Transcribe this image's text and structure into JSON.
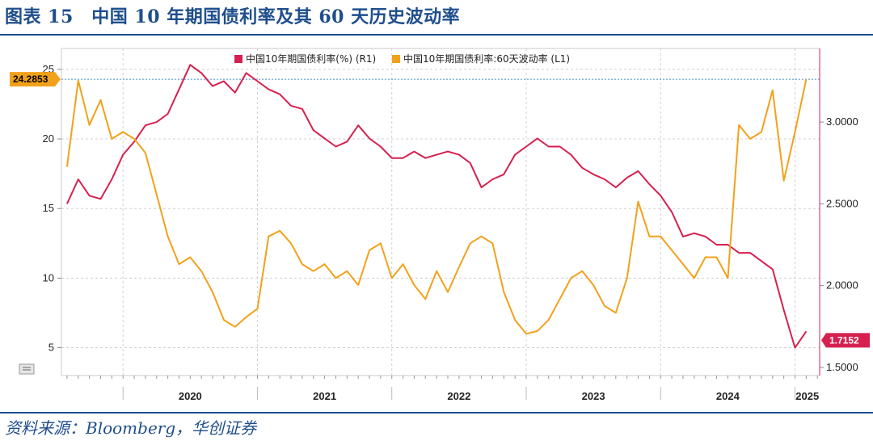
{
  "title": "图表 15　中国 10 年期国债利率及其 60 天历史波动率",
  "source": "资料来源：Bloomberg，华创证券",
  "chart_data": {
    "type": "line",
    "legend": [
      {
        "name": "中国10年期国债利率(%) (R1)",
        "color": "#d6204f"
      },
      {
        "name": "中国10年期国债利率:60天波动率 (L1)",
        "color": "#f2a11a"
      }
    ],
    "left_axis": {
      "ylim": [
        3.0,
        26.5
      ],
      "ticks": [
        "5",
        "10",
        "15",
        "20",
        "25"
      ]
    },
    "right_axis": {
      "ylim": [
        1.45,
        3.45
      ],
      "ticks": [
        "1.5000",
        "2.0000",
        "2.5000",
        "3.0000"
      ]
    },
    "x_labels": [
      "2020",
      "2021",
      "2022",
      "2023",
      "2024",
      "2025"
    ],
    "reference_line_left": 24.2853,
    "last_value_left": "24.2853",
    "last_value_right": "1.7152",
    "colors": {
      "yield": "#d6204f",
      "vol": "#f2a11a",
      "refline": "#5b9bd5"
    },
    "series": [
      {
        "name": "中国10年期国债利率(%) (R1)",
        "axis": "right",
        "x": [
          "2019-08",
          "2019-09",
          "2019-10",
          "2019-11",
          "2019-12",
          "2020-01",
          "2020-02",
          "2020-03",
          "2020-04",
          "2020-05",
          "2020-06",
          "2020-07",
          "2020-08",
          "2020-09",
          "2020-10",
          "2020-11",
          "2020-12",
          "2021-01",
          "2021-02",
          "2021-03",
          "2021-04",
          "2021-05",
          "2021-06",
          "2021-07",
          "2021-08",
          "2021-09",
          "2021-10",
          "2021-11",
          "2021-12",
          "2022-01",
          "2022-02",
          "2022-03",
          "2022-04",
          "2022-05",
          "2022-06",
          "2022-07",
          "2022-08",
          "2022-09",
          "2022-10",
          "2022-11",
          "2022-12",
          "2023-01",
          "2023-02",
          "2023-03",
          "2023-04",
          "2023-05",
          "2023-06",
          "2023-07",
          "2023-08",
          "2023-09",
          "2023-10",
          "2023-11",
          "2023-12",
          "2024-01",
          "2024-02",
          "2024-03",
          "2024-04",
          "2024-05",
          "2024-06",
          "2024-07",
          "2024-08",
          "2024-09",
          "2024-10",
          "2024-11",
          "2024-12",
          "2025-01",
          "2025-02"
        ],
        "values": [
          2.5,
          2.65,
          2.55,
          2.53,
          2.65,
          2.8,
          2.88,
          2.98,
          3.0,
          3.05,
          3.2,
          3.35,
          3.3,
          3.22,
          3.25,
          3.18,
          3.3,
          3.25,
          3.2,
          3.17,
          3.1,
          3.08,
          2.95,
          2.9,
          2.85,
          2.88,
          2.98,
          2.9,
          2.85,
          2.78,
          2.78,
          2.82,
          2.78,
          2.8,
          2.82,
          2.8,
          2.75,
          2.6,
          2.65,
          2.68,
          2.8,
          2.85,
          2.9,
          2.85,
          2.85,
          2.8,
          2.72,
          2.68,
          2.65,
          2.6,
          2.66,
          2.7,
          2.62,
          2.55,
          2.45,
          2.3,
          2.32,
          2.3,
          2.25,
          2.25,
          2.2,
          2.2,
          2.15,
          2.1,
          1.85,
          1.62,
          1.72
        ]
      },
      {
        "name": "中国10年期国债利率:60天波动率 (L1)",
        "axis": "left",
        "x": [
          "2019-08",
          "2019-09",
          "2019-10",
          "2019-11",
          "2019-12",
          "2020-01",
          "2020-02",
          "2020-03",
          "2020-04",
          "2020-05",
          "2020-06",
          "2020-07",
          "2020-08",
          "2020-09",
          "2020-10",
          "2020-11",
          "2020-12",
          "2021-01",
          "2021-02",
          "2021-03",
          "2021-04",
          "2021-05",
          "2021-06",
          "2021-07",
          "2021-08",
          "2021-09",
          "2021-10",
          "2021-11",
          "2021-12",
          "2022-01",
          "2022-02",
          "2022-03",
          "2022-04",
          "2022-05",
          "2022-06",
          "2022-07",
          "2022-08",
          "2022-09",
          "2022-10",
          "2022-11",
          "2022-12",
          "2023-01",
          "2023-02",
          "2023-03",
          "2023-04",
          "2023-05",
          "2023-06",
          "2023-07",
          "2023-08",
          "2023-09",
          "2023-10",
          "2023-11",
          "2023-12",
          "2024-01",
          "2024-02",
          "2024-03",
          "2024-04",
          "2024-05",
          "2024-06",
          "2024-07",
          "2024-08",
          "2024-09",
          "2024-10",
          "2024-11",
          "2024-12",
          "2025-01",
          "2025-02"
        ],
        "values": [
          18.0,
          24.2,
          21.0,
          22.8,
          20.0,
          20.5,
          20.0,
          19.0,
          16.0,
          13.0,
          11.0,
          11.5,
          10.5,
          9.0,
          7.0,
          6.5,
          7.2,
          7.8,
          13.0,
          13.4,
          12.5,
          11.0,
          10.5,
          11.0,
          10.0,
          10.5,
          9.5,
          12.0,
          12.5,
          10.0,
          11.0,
          9.5,
          8.5,
          10.5,
          9.0,
          10.8,
          12.5,
          13.0,
          12.5,
          9.0,
          7.0,
          6.0,
          6.2,
          7.0,
          8.5,
          10.0,
          10.5,
          9.5,
          8.0,
          7.5,
          10.0,
          15.5,
          13.0,
          13.0,
          12.0,
          11.0,
          10.0,
          11.5,
          11.5,
          10.0,
          21.0,
          20.0,
          20.5,
          23.5,
          17.0,
          20.5,
          24.29
        ]
      }
    ]
  }
}
